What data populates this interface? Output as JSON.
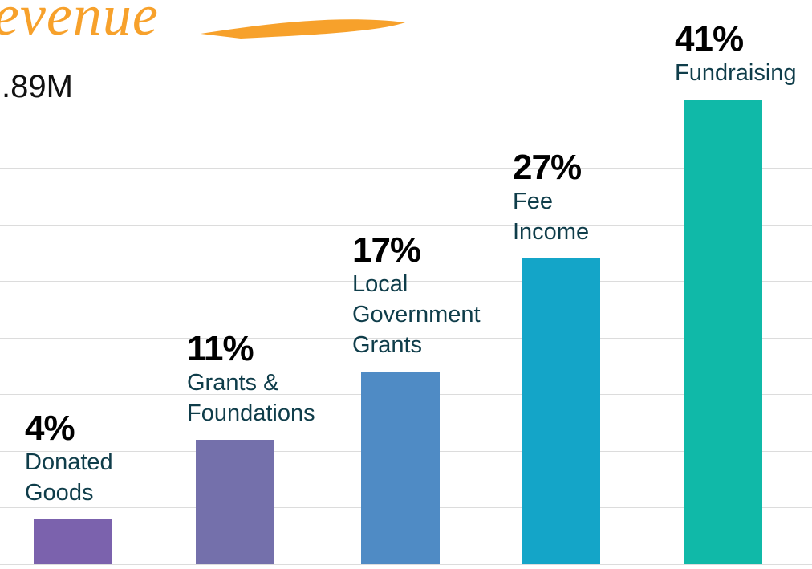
{
  "chart_data": {
    "type": "bar",
    "title": "evenue",
    "subtitle": ".89M",
    "categories": [
      "Donated Goods",
      "Grants & Foundations",
      "Local Government Grants",
      "Fee Income",
      "Fundraising"
    ],
    "values": [
      4,
      11,
      17,
      27,
      41
    ],
    "value_labels": [
      "4%",
      "11%",
      "17%",
      "27%",
      "41%"
    ],
    "colors": [
      "#7b62ad",
      "#7470ab",
      "#4f8bc5",
      "#14a5c8",
      "#10b9a8"
    ],
    "ylim": [
      0,
      45
    ],
    "yticks": [
      0,
      5,
      10,
      15,
      20,
      25,
      30,
      35,
      40,
      45
    ],
    "grid": true
  }
}
